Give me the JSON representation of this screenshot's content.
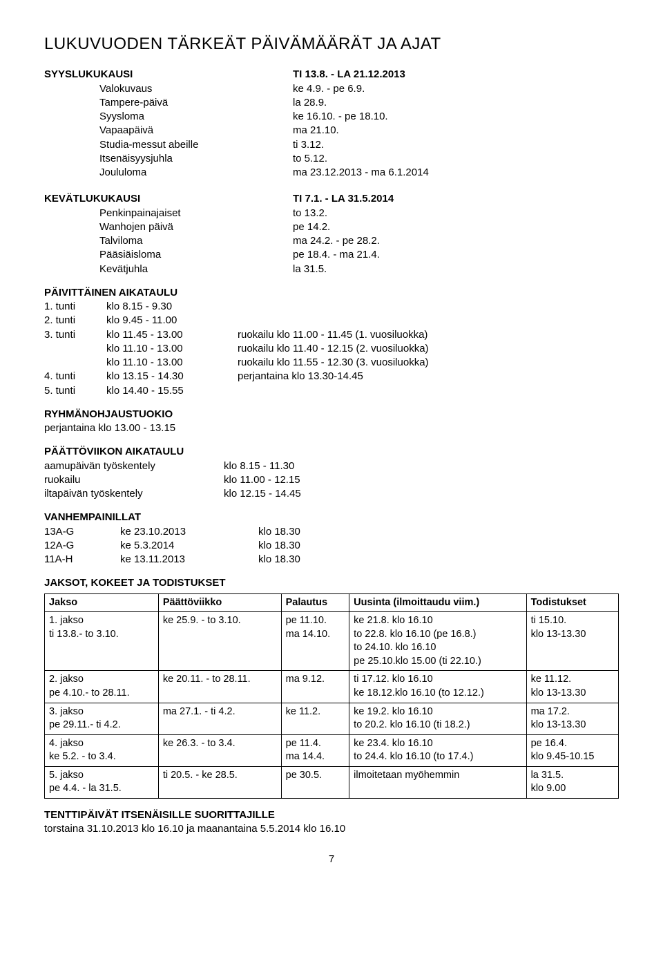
{
  "title": "LUKUVUODEN TÄRKEÄT PÄIVÄMÄÄRÄT JA AJAT",
  "syys": {
    "heading": "SYYSLUKUKAUSI",
    "range": "TI 13.8. - LA 21.12.2013",
    "rows": [
      {
        "label": "Valokuvaus",
        "value": "ke 4.9. - pe 6.9."
      },
      {
        "label": "Tampere-päivä",
        "value": "la 28.9."
      },
      {
        "label": "Syysloma",
        "value": "ke 16.10. - pe 18.10."
      },
      {
        "label": "Vapaapäivä",
        "value": "ma 21.10."
      },
      {
        "label": "Studia-messut abeille",
        "value": "ti 3.12."
      },
      {
        "label": "Itsenäisyysjuhla",
        "value": "to 5.12."
      },
      {
        "label": "Joululoma",
        "value": "ma 23.12.2013 - ma 6.1.2014"
      }
    ]
  },
  "kevat": {
    "heading": "KEVÄTLUKUKAUSI",
    "range": "TI 7.1. - LA 31.5.2014",
    "rows": [
      {
        "label": "Penkinpainajaiset",
        "value": "to 13.2."
      },
      {
        "label": "Wanhojen päivä",
        "value": "pe 14.2."
      },
      {
        "label": "Talviloma",
        "value": "ma 24.2. - pe 28.2."
      },
      {
        "label": "Pääsiäisloma",
        "value": "pe 18.4. - ma 21.4."
      },
      {
        "label": "Kevätjuhla",
        "value": "la 31.5."
      }
    ]
  },
  "aikataulu": {
    "heading": "PÄIVITTÄINEN AIKATAULU",
    "rows": [
      {
        "c1": "1. tunti",
        "c2": "klo  8.15 -  9.30",
        "c3": ""
      },
      {
        "c1": "2. tunti",
        "c2": "klo  9.45 - 11.00",
        "c3": ""
      },
      {
        "c1": "3. tunti",
        "c2": "klo 11.45 - 13.00",
        "c3": "ruokailu klo 11.00 - 11.45 (1. vuosiluokka)"
      },
      {
        "c1": "",
        "c2": "klo 11.10 - 13.00",
        "c3": "ruokailu klo 11.40 - 12.15 (2. vuosiluokka)"
      },
      {
        "c1": "",
        "c2": "klo 11.10 - 13.00",
        "c3": "ruokailu klo 11.55 - 12.30 (3. vuosiluokka)"
      },
      {
        "c1": "4. tunti",
        "c2": "klo 13.15 - 14.30",
        "c3": "perjantaina klo 13.30-14.45"
      },
      {
        "c1": "5. tunti",
        "c2": "klo 14.40 - 15.55",
        "c3": ""
      }
    ]
  },
  "ryhma": {
    "heading": "RYHMÄNOHJAUSTUOKIO",
    "line": "perjantaina klo 13.00 - 13.15"
  },
  "paatto": {
    "heading": "PÄÄTTÖVIIKON AIKATAULU",
    "rows": [
      {
        "p1": "aamupäivän työskentely",
        "p2": "klo  8.15 - 11.30"
      },
      {
        "p1": "ruokailu",
        "p2": "klo 11.00 - 12.15"
      },
      {
        "p1": "iltapäivän työskentely",
        "p2": "klo 12.15 - 14.45"
      }
    ]
  },
  "vanhempainillat": {
    "heading": "VANHEMPAINILLAT",
    "rows": [
      {
        "t1": "13A-G",
        "t2": "ke 23.10.2013",
        "t3": "klo 18.30"
      },
      {
        "t1": "12A-G",
        "t2": "ke 5.3.2014",
        "t3": "klo 18.30"
      },
      {
        "t1": "11A-H",
        "t2": "ke 13.11.2013",
        "t3": "klo 18.30"
      }
    ]
  },
  "jaksot": {
    "heading": "JAKSOT, KOKEET JA TODISTUKSET",
    "headers": [
      "Jakso",
      "Päättöviikko",
      "Palautus",
      "Uusinta    (ilmoittaudu viim.)",
      "Todistukset"
    ],
    "rows": [
      {
        "jakso": "1. jakso\nti 13.8.- to 3.10.",
        "paatto": "ke 25.9. - to 3.10.",
        "palautus": "pe 11.10.\nma 14.10.",
        "uusinta": "ke 21.8.  klo 16.10\nto 22.8.  klo 16.10      (pe 16.8.)\nto 24.10. klo 16.10\npe 25.10.klo 15.00      (ti 22.10.)",
        "todistukset": "ti 15.10.\nklo 13-13.30"
      },
      {
        "jakso": "2. jakso\npe 4.10.- to 28.11.",
        "paatto": "ke 20.11. - to 28.11.",
        "palautus": "ma 9.12.",
        "uusinta": "ti 17.12.  klo 16.10\nke 18.12.klo 16.10     (to 12.12.)",
        "todistukset": "ke 11.12.\nklo 13-13.30"
      },
      {
        "jakso": "3. jakso\npe 29.11.- ti 4.2.",
        "paatto": "ma 27.1. - ti 4.2.",
        "palautus": "ke 11.2.",
        "uusinta": "ke 19.2.  klo 16.10\nto 20.2.  klo 16.10      (ti 18.2.)",
        "todistukset": "ma 17.2.\nklo 13-13.30"
      },
      {
        "jakso": "4. jakso\nke 5.2. - to 3.4.",
        "paatto": "ke 26.3. - to 3.4.",
        "palautus": "pe 11.4.\nma 14.4.",
        "uusinta": "ke 23.4.  klo 16.10\nto 24.4.  klo 16.10      (to 17.4.)",
        "todistukset": "pe 16.4.\nklo 9.45-10.15"
      },
      {
        "jakso": "5. jakso\npe 4.4. - la 31.5.",
        "paatto": "ti 20.5. - ke 28.5.",
        "palautus": "pe 30.5.",
        "uusinta": "ilmoitetaan myöhemmin",
        "todistukset": "la 31.5.\nklo 9.00"
      }
    ]
  },
  "tentti": {
    "heading": "TENTTIPÄIVÄT ITSENÄISILLE SUORITTAJILLE",
    "line": " torstaina 31.10.2013 klo 16.10 ja maanantaina 5.5.2014 klo 16.10"
  },
  "pagenum": "7"
}
